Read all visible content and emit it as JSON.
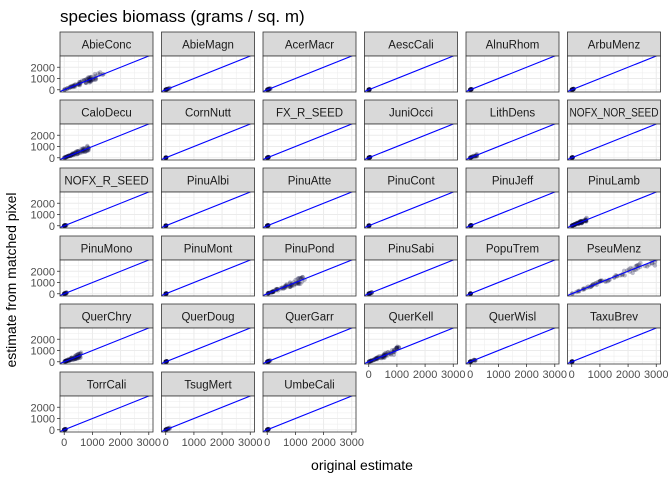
{
  "chart_data": {
    "type": "scatter",
    "title": "species biomass (grams / sq. m)",
    "xlabel": "original estimate",
    "ylabel": "estimate from matched pixel",
    "xlim": [
      -150,
      3150
    ],
    "ylim": [
      -200,
      3000
    ],
    "x_ticks": [
      0,
      1000,
      2000,
      3000
    ],
    "x_tick_labels": [
      "0",
      "1000",
      "2000",
      "3000"
    ],
    "y_ticks": [
      0,
      1000,
      2000
    ],
    "y_tick_labels": [
      "0",
      "1000",
      "2000"
    ],
    "grid": true,
    "reference_line": "y = x",
    "colors": {
      "points": "#0a0a3c",
      "line": "#0000ff",
      "strip": "#d9d9d9",
      "grid": "#ebebeb"
    },
    "panels": [
      {
        "name": "AbieConc",
        "max": 1400,
        "spread": 0.28
      },
      {
        "name": "AbieMagn",
        "max": 150,
        "spread": 0.4
      },
      {
        "name": "AcerMacr",
        "max": 120,
        "spread": 0.4
      },
      {
        "name": "AescCali",
        "max": 40,
        "spread": 0.3
      },
      {
        "name": "AlnuRhom",
        "max": 60,
        "spread": 0.3
      },
      {
        "name": "ArbuMenz",
        "max": 70,
        "spread": 0.4
      },
      {
        "name": "CaloDecu",
        "max": 900,
        "spread": 0.3
      },
      {
        "name": "CornNutt",
        "max": 25,
        "spread": 0.3
      },
      {
        "name": "FX_R_SEED",
        "max": 60,
        "spread": 0.4
      },
      {
        "name": "JuniOcci",
        "max": 50,
        "spread": 0.3
      },
      {
        "name": "LithDens",
        "max": 280,
        "spread": 0.5
      },
      {
        "name": "NOFX_NOR_SEED",
        "max": 40,
        "spread": 0.3
      },
      {
        "name": "NOFX_R_SEED",
        "max": 90,
        "spread": 0.4
      },
      {
        "name": "PinuAlbi",
        "max": 20,
        "spread": 0.3
      },
      {
        "name": "PinuAtte",
        "max": 40,
        "spread": 0.3
      },
      {
        "name": "PinuCont",
        "max": 30,
        "spread": 0.3
      },
      {
        "name": "PinuJeff",
        "max": 40,
        "spread": 0.3
      },
      {
        "name": "PinuLamb",
        "max": 550,
        "spread": 0.35
      },
      {
        "name": "PinuMono",
        "max": 90,
        "spread": 0.6
      },
      {
        "name": "PinuMont",
        "max": 25,
        "spread": 0.3
      },
      {
        "name": "PinuPond",
        "max": 1350,
        "spread": 0.25
      },
      {
        "name": "PinuSabi",
        "max": 110,
        "spread": 0.6
      },
      {
        "name": "PopuTrem",
        "max": 20,
        "spread": 0.3
      },
      {
        "name": "PseuMenz",
        "max": 3000,
        "spread": 0.15
      },
      {
        "name": "QuerChry",
        "max": 620,
        "spread": 0.4
      },
      {
        "name": "QuerDoug",
        "max": 40,
        "spread": 0.3
      },
      {
        "name": "QuerGarr",
        "max": 120,
        "spread": 0.4
      },
      {
        "name": "QuerKell",
        "max": 1100,
        "spread": 0.35
      },
      {
        "name": "QuerWisl",
        "max": 180,
        "spread": 0.5
      },
      {
        "name": "TaxuBrev",
        "max": 30,
        "spread": 0.3
      },
      {
        "name": "TorrCali",
        "max": 60,
        "spread": 0.3
      },
      {
        "name": "TsugMert",
        "max": 150,
        "spread": 0.5
      },
      {
        "name": "UmbeCali",
        "max": 60,
        "spread": 0.3
      }
    ]
  }
}
